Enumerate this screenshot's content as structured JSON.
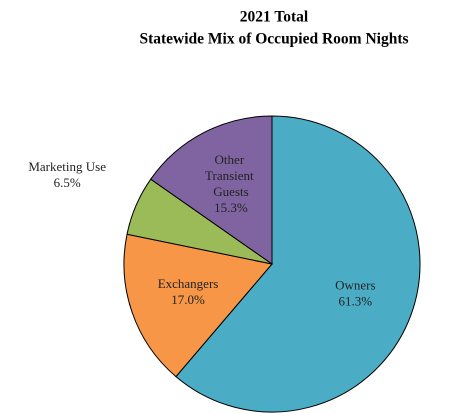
{
  "chart_data": {
    "type": "pie",
    "title": [
      "2021 Total",
      "Statewide Mix of Occupied Room Nights"
    ],
    "categories": [
      "Owners",
      "Exchangers",
      "Marketing Use",
      "Other Transient Guests"
    ],
    "values": [
      61.3,
      17.0,
      6.5,
      15.3
    ],
    "value_labels": [
      "61.3%",
      "17.0%",
      "6.5%",
      "15.3%"
    ],
    "colors": [
      "#4bacc6",
      "#f79646",
      "#9bbb59",
      "#8064a2"
    ]
  }
}
